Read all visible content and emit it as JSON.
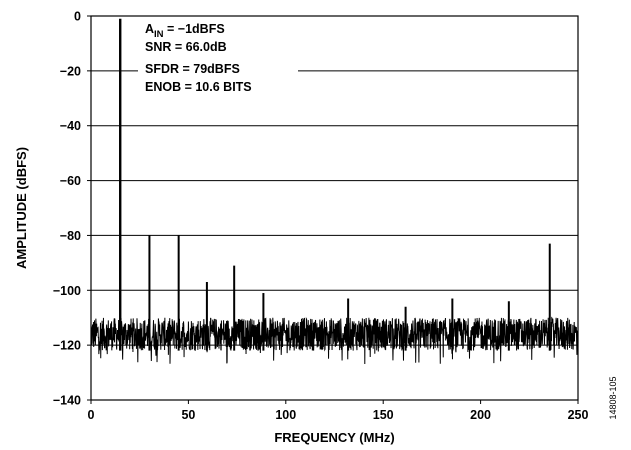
{
  "chart_data": {
    "type": "line",
    "title": "",
    "xlabel": "FREQUENCY (MHz)",
    "ylabel": "AMPLITUDE (dBFS)",
    "xlim": [
      0,
      250
    ],
    "ylim": [
      -140,
      0
    ],
    "xticks": [
      0,
      50,
      100,
      150,
      200,
      250
    ],
    "yticks": [
      0,
      -20,
      -40,
      -60,
      -80,
      -100,
      -120,
      -140
    ],
    "grid": "horizontal",
    "noise_floor": {
      "band_top": -110,
      "band_bottom": -122,
      "spikes_min": -127
    },
    "tones": [
      {
        "freq": 15.0,
        "amplitude": -1
      },
      {
        "freq": 30.0,
        "amplitude": -80
      },
      {
        "freq": 45.0,
        "amplitude": -80
      },
      {
        "freq": 59.5,
        "amplitude": -97
      },
      {
        "freq": 73.5,
        "amplitude": -91
      },
      {
        "freq": 88.5,
        "amplitude": -101
      },
      {
        "freq": 132.0,
        "amplitude": -103
      },
      {
        "freq": 161.5,
        "amplitude": -106
      },
      {
        "freq": 185.5,
        "amplitude": -103
      },
      {
        "freq": 214.5,
        "amplitude": -104
      },
      {
        "freq": 235.5,
        "amplitude": -83
      }
    ],
    "annotations": [
      "A_IN = −1dBFS",
      "SNR = 66.0dB",
      "SFDR = 79dBFS",
      "ENOB = 10.6 BITS"
    ],
    "figure_id": "14808-105",
    "colors": {
      "trace": "#000000",
      "grid": "#000000",
      "background": "#ffffff"
    }
  }
}
